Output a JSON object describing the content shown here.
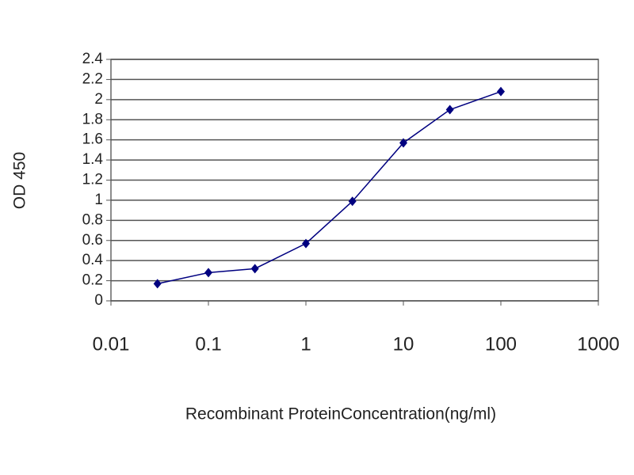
{
  "chart_data": {
    "type": "line",
    "y_label": "OD 450",
    "x_label": "Recombinant ProteinConcentration(ng/ml)",
    "xscale": "log",
    "x": [
      0.03,
      0.1,
      0.3,
      1,
      3,
      10,
      30,
      100
    ],
    "values": [
      0.17,
      0.28,
      0.32,
      0.57,
      0.99,
      1.57,
      1.9,
      2.08
    ],
    "color": "#000080",
    "xlim": [
      0.01,
      1000
    ],
    "xticks": [
      0.01,
      0.1,
      1,
      10,
      100,
      1000
    ],
    "ylim": [
      0,
      2.4
    ],
    "yticks": [
      0,
      0.2,
      0.4,
      0.6,
      0.8,
      1,
      1.2,
      1.4,
      1.6,
      1.8,
      2,
      2.2,
      2.4
    ],
    "grid": true
  }
}
